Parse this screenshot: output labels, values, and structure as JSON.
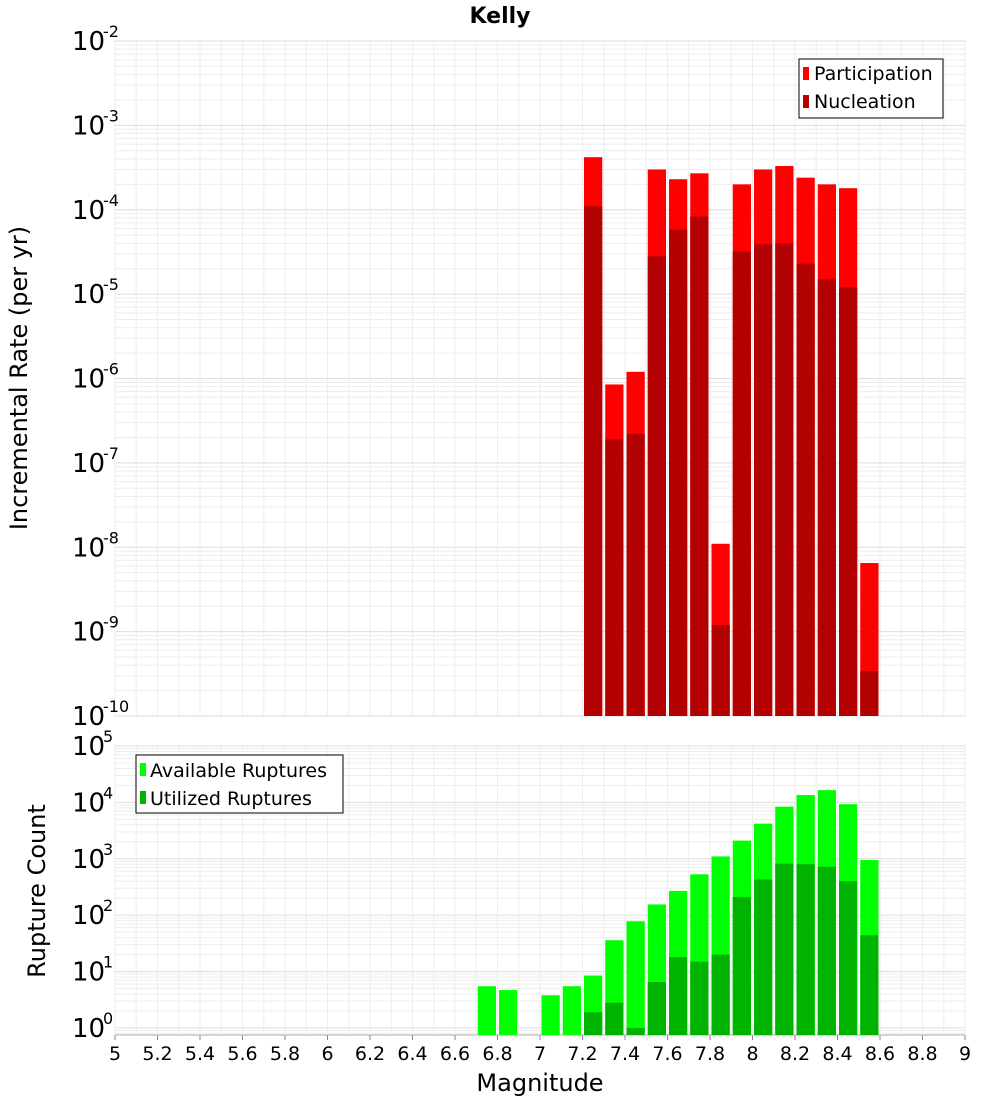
{
  "title": "Kelly",
  "chart_data": [
    {
      "type": "bar",
      "ylabel": "Incremental Rate (per yr)",
      "yscale": "log",
      "ylim": [
        1e-10,
        0.01
      ],
      "xlim": [
        5,
        9
      ],
      "bar_width": 0.1,
      "grid": true,
      "legend_position": "top-right",
      "y_ticks": [
        {
          "base": "10",
          "exp": "-2",
          "value": 0.01
        },
        {
          "base": "10",
          "exp": "-3",
          "value": 0.001
        },
        {
          "base": "10",
          "exp": "-4",
          "value": 0.0001
        },
        {
          "base": "10",
          "exp": "-5",
          "value": 1e-05
        },
        {
          "base": "10",
          "exp": "-6",
          "value": 1e-06
        },
        {
          "base": "10",
          "exp": "-7",
          "value": 1e-07
        },
        {
          "base": "10",
          "exp": "-8",
          "value": 1e-08
        },
        {
          "base": "10",
          "exp": "-9",
          "value": 1e-09
        },
        {
          "base": "10",
          "exp": "-10",
          "value": 1e-10
        }
      ],
      "x": [
        7.25,
        7.35,
        7.45,
        7.55,
        7.65,
        7.75,
        7.85,
        7.95,
        8.05,
        8.15,
        8.25,
        8.35,
        8.45,
        8.55
      ],
      "series": [
        {
          "name": "Participation",
          "color": "#ff0000",
          "values": [
            0.00042,
            8.5e-07,
            1.2e-06,
            0.0003,
            0.00023,
            0.00027,
            1.1e-08,
            0.0002,
            0.0003,
            0.00033,
            0.00024,
            0.0002,
            0.00018,
            6.5e-09
          ]
        },
        {
          "name": "Nucleation",
          "color": "#b30000",
          "values": [
            0.00011,
            1.9e-07,
            2.2e-07,
            2.8e-05,
            5.8e-05,
            8.3e-05,
            1.2e-09,
            3.2e-05,
            3.9e-05,
            4e-05,
            2.3e-05,
            1.5e-05,
            1.2e-05,
            3.4e-10
          ]
        }
      ]
    },
    {
      "type": "bar",
      "xlabel": "Magnitude",
      "ylabel": "Rupture Count",
      "yscale": "log",
      "ylim": [
        0.75,
        100000.0
      ],
      "xlim": [
        5,
        9
      ],
      "bar_width": 0.1,
      "grid": true,
      "legend_position": "top-left",
      "y_ticks": [
        {
          "base": "10",
          "exp": "5",
          "value": 100000.0
        },
        {
          "base": "10",
          "exp": "4",
          "value": 10000.0
        },
        {
          "base": "10",
          "exp": "3",
          "value": 1000.0
        },
        {
          "base": "10",
          "exp": "2",
          "value": 100.0
        },
        {
          "base": "10",
          "exp": "1",
          "value": 10.0
        },
        {
          "base": "10",
          "exp": "0",
          "value": 1
        }
      ],
      "x_tick_labels": [
        "5",
        "5.2",
        "5.4",
        "5.6",
        "5.8",
        "6",
        "6.2",
        "6.4",
        "6.6",
        "6.8",
        "7",
        "7.2",
        "7.4",
        "7.6",
        "7.8",
        "8",
        "8.2",
        "8.4",
        "8.6",
        "8.8",
        "9"
      ],
      "x": [
        6.75,
        6.85,
        7.05,
        7.15,
        7.25,
        7.35,
        7.45,
        7.55,
        7.65,
        7.75,
        7.85,
        7.95,
        8.05,
        8.15,
        8.25,
        8.35,
        8.45,
        8.55
      ],
      "series": [
        {
          "name": "Available Ruptures",
          "color": "#00ff00",
          "values": [
            5.5,
            4.7,
            3.8,
            5.5,
            8.5,
            36,
            78,
            155,
            270,
            530,
            1100,
            2100,
            4200,
            8400,
            13500,
            16500,
            9300,
            950
          ]
        },
        {
          "name": "Utilized Ruptures",
          "color": "#00b300",
          "values": [
            null,
            null,
            null,
            null,
            1.9,
            2.8,
            1.0,
            6.5,
            18,
            15,
            20,
            210,
            430,
            820,
            800,
            720,
            400,
            44
          ]
        }
      ]
    }
  ]
}
